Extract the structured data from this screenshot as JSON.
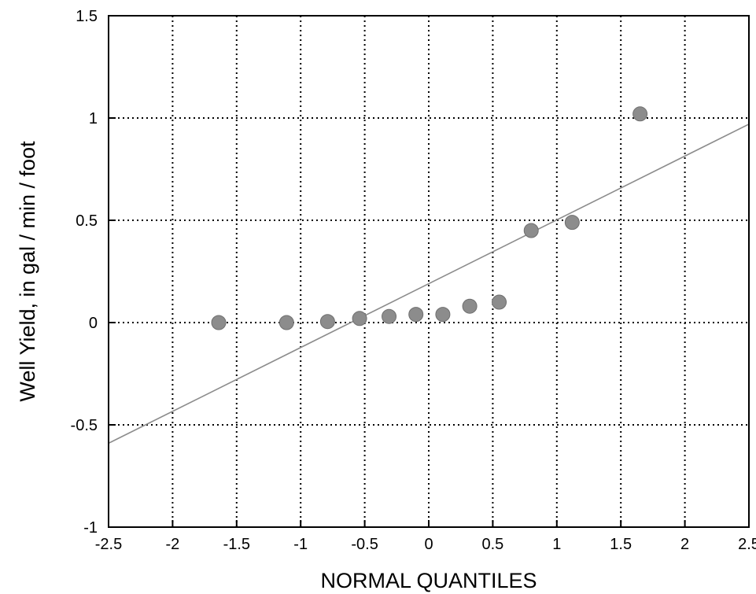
{
  "chart_data": {
    "type": "scatter",
    "title": "",
    "xlabel": "NORMAL QUANTILES",
    "ylabel": "Well Yield, in gal / min / foot",
    "xlim": [
      -2.5,
      2.5
    ],
    "ylim": [
      -1,
      1.5
    ],
    "x_ticks": [
      -2.5,
      -2,
      -1.5,
      -1,
      -0.5,
      0,
      0.5,
      1,
      1.5,
      2,
      2.5
    ],
    "y_ticks": [
      -1,
      -0.5,
      0,
      0.5,
      1,
      1.5
    ],
    "x_tick_labels": [
      "-2.5",
      "-2",
      "-1.5",
      "-1",
      "-0.5",
      "0",
      "0.5",
      "1",
      "1.5",
      "2",
      "2.5"
    ],
    "y_tick_labels": [
      "-1",
      "-0.5",
      "0",
      "0.5",
      "1",
      "1.5"
    ],
    "grid": true,
    "grid_style": "dotted",
    "points": [
      {
        "x": -1.64,
        "y": 0.0
      },
      {
        "x": -1.11,
        "y": 0.0
      },
      {
        "x": -0.79,
        "y": 0.005
      },
      {
        "x": -0.54,
        "y": 0.02
      },
      {
        "x": -0.31,
        "y": 0.03
      },
      {
        "x": -0.1,
        "y": 0.04
      },
      {
        "x": 0.11,
        "y": 0.04
      },
      {
        "x": 0.32,
        "y": 0.08
      },
      {
        "x": 0.55,
        "y": 0.1
      },
      {
        "x": 0.8,
        "y": 0.45
      },
      {
        "x": 1.12,
        "y": 0.49
      },
      {
        "x": 1.65,
        "y": 1.02
      }
    ],
    "fit_line": {
      "x": [
        -2.5,
        2.5
      ],
      "y": [
        -0.59,
        0.97
      ]
    },
    "marker_color": "#8c8c8c",
    "line_color": "#8c8c8c"
  }
}
